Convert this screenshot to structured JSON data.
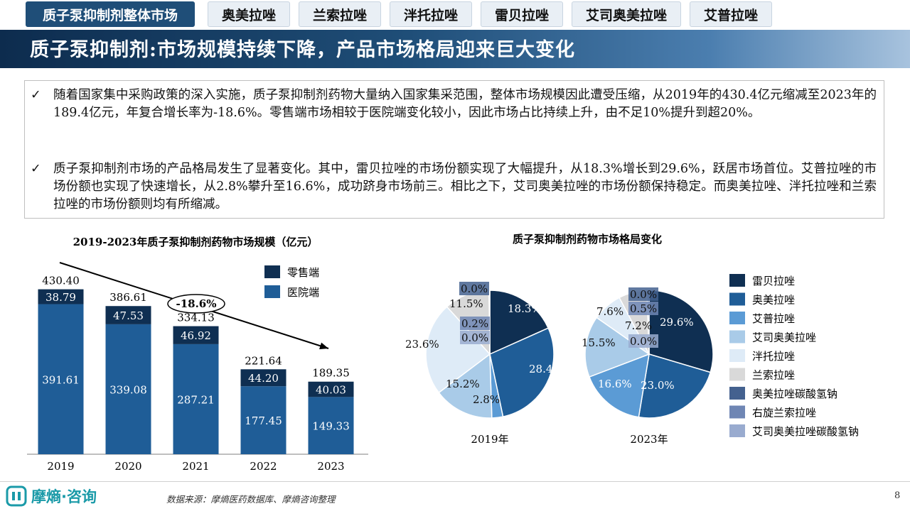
{
  "tabs": [
    {
      "label": "质子泵抑制剂整体市场",
      "active": true
    },
    {
      "label": "奥美拉唑",
      "active": false
    },
    {
      "label": "兰索拉唑",
      "active": false
    },
    {
      "label": "泮托拉唑",
      "active": false
    },
    {
      "label": "雷贝拉唑",
      "active": false
    },
    {
      "label": "艾司奥美拉唑",
      "active": false
    },
    {
      "label": "艾普拉唑",
      "active": false
    }
  ],
  "page_title": "质子泵抑制剂:市场规模持续下降，产品市场格局迎来巨大变化",
  "bullets": [
    {
      "mark": "✓",
      "text": "随着国家集中采购政策的深入实施，质子泵抑制剂药物大量纳入国家集采范围，整体市场规模因此遭受压缩，从2019年的430.4亿元缩减至2023年的189.4亿元，年复合增长率为-18.6%。零售端市场相较于医院端变化较小，因此市场占比持续上升，由不足10%提升到超20%。"
    },
    {
      "mark": "✓",
      "text": "质子泵抑制剂市场的产品格局发生了显著变化。其中，雷贝拉唑的市场份额实现了大幅提升，从18.3%增长到29.6%，跃居市场首位。艾普拉唑的市场份额也实现了快速增长，从2.8%攀升至16.6%，成功跻身市场前三。相比之下，艾司奥美拉唑的市场份额保持稳定。而奥美拉唑、泮托拉唑和兰索拉唑的市场份额则均有所缩减。"
    }
  ],
  "chart_data": [
    {
      "type": "bar",
      "stacked": true,
      "title": "2019-2023年质子泵抑制剂药物市场规模（亿元）",
      "categories": [
        "2019",
        "2020",
        "2021",
        "2022",
        "2023"
      ],
      "series": [
        {
          "name": "医院端",
          "values": [
            391.61,
            339.08,
            287.21,
            177.45,
            149.33
          ],
          "labels": [
            "391.61",
            "339.08",
            "287.21",
            "177.45",
            "149.33"
          ],
          "color": "#1f5d97"
        },
        {
          "name": "零售端",
          "values": [
            38.79,
            47.53,
            46.92,
            44.2,
            40.03
          ],
          "labels": [
            "38.79",
            "47.53",
            "46.92",
            "44.20",
            "40.03"
          ],
          "color": "#0f2f52"
        }
      ],
      "totals": [
        "430.40",
        "386.61",
        "334.13",
        "221.64",
        "189.35"
      ],
      "cagr_label": "-18.6%",
      "ylim": [
        0,
        500
      ],
      "legend_position": "top-right"
    },
    {
      "type": "pie",
      "title": "质子泵抑制剂药物市场格局变化",
      "legend": [
        {
          "name": "雷贝拉唑",
          "color": "#0f2f52"
        },
        {
          "name": "奥美拉唑",
          "color": "#1f5d97"
        },
        {
          "name": "艾普拉唑",
          "color": "#5b9bd5"
        },
        {
          "name": "艾司奥美拉唑",
          "color": "#a9cbe8"
        },
        {
          "name": "泮托拉唑",
          "color": "#deebf7"
        },
        {
          "name": "兰索拉唑",
          "color": "#d9d9d9"
        },
        {
          "name": "奥美拉唑碳酸氢钠",
          "color": "#44618f"
        },
        {
          "name": "右旋兰索拉唑",
          "color": "#6f86b4"
        },
        {
          "name": "艾司奥美拉唑碳酸氢钠",
          "color": "#99abcf"
        }
      ],
      "pies": [
        {
          "label": "2019年",
          "values": [
            18.3,
            28.4,
            2.8,
            15.2,
            23.6,
            11.5,
            0.0,
            0.2,
            0.0
          ],
          "labels": [
            "18.3%",
            "28.4%",
            "2.8%",
            "15.2%",
            "23.6%",
            "11.5%",
            "0.0%",
            "0.2%",
            "0.0%"
          ]
        },
        {
          "label": "2023年",
          "values": [
            29.6,
            23.0,
            16.6,
            15.5,
            7.6,
            7.2,
            0.0,
            0.5,
            0.0
          ],
          "labels": [
            "29.6%",
            "23.0%",
            "16.6%",
            "15.5%",
            "7.6%",
            "7.2%",
            "0.0%",
            "0.5%",
            "0.0%"
          ]
        }
      ]
    }
  ],
  "footer": {
    "logo_text": "摩熵·咨询",
    "source": "数据来源：摩熵医药数据库、摩熵咨询整理",
    "page_number": "8"
  }
}
